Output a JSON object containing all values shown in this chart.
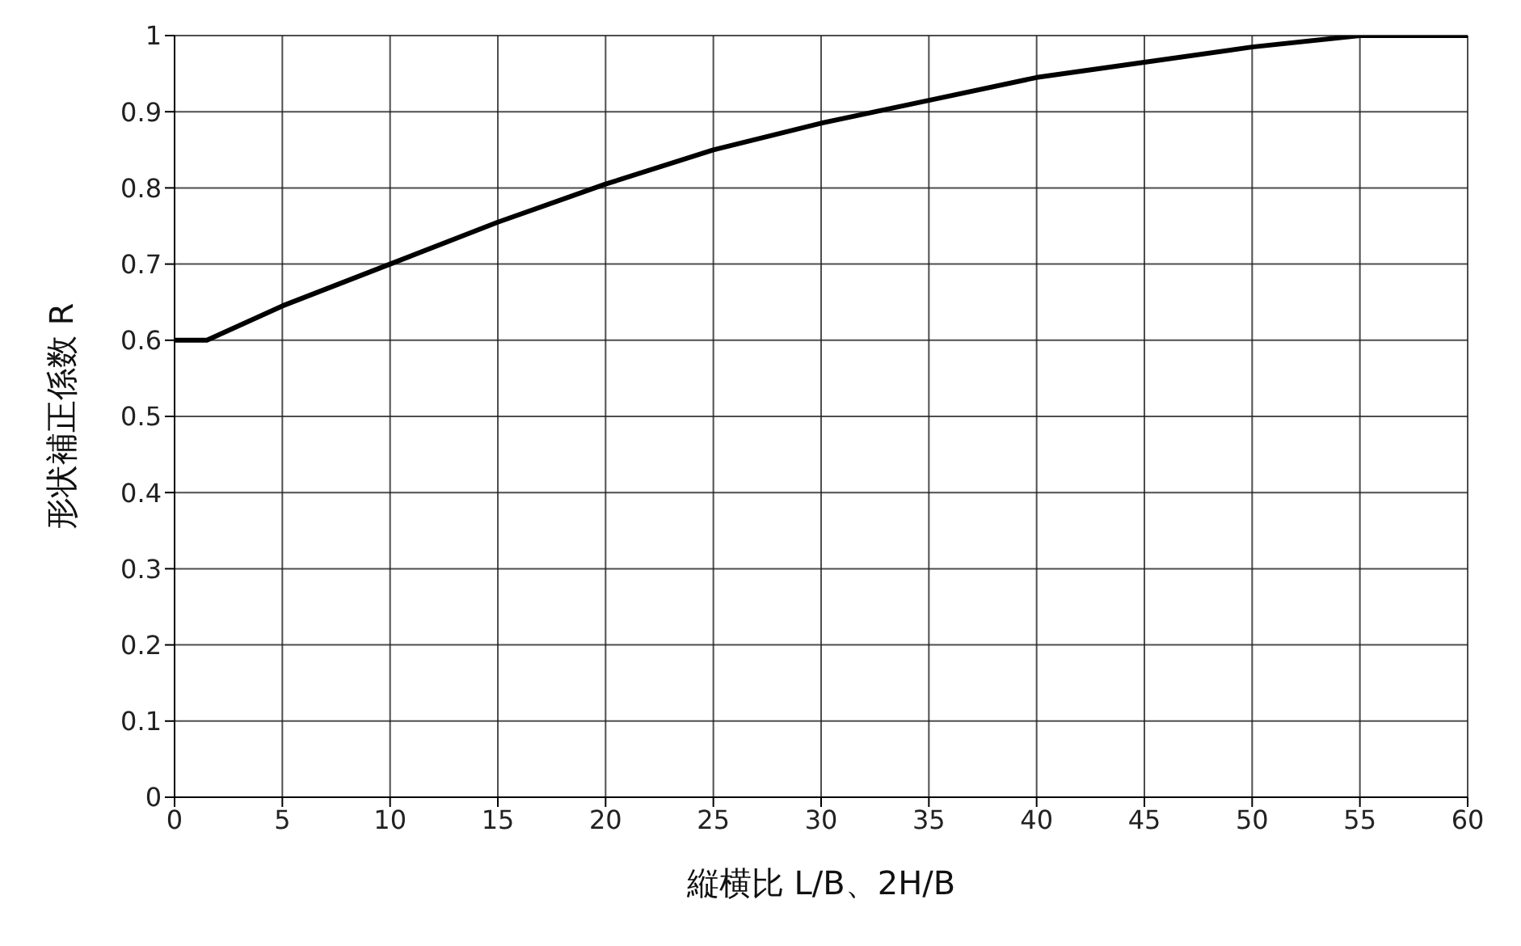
{
  "chart_data": {
    "type": "line",
    "xlabel": "縦横比 L/B、2H/B",
    "ylabel": "形状補正係数 R",
    "x": [
      0,
      1.5,
      5,
      10,
      15,
      20,
      25,
      30,
      35,
      40,
      45,
      50,
      55,
      60
    ],
    "series": [
      {
        "color": "#000000",
        "values": [
          0.6,
          0.6,
          0.645,
          0.7,
          0.755,
          0.805,
          0.85,
          0.885,
          0.915,
          0.945,
          0.965,
          0.985,
          1.0,
          1.0
        ]
      }
    ],
    "xlim": [
      0,
      60
    ],
    "xticks": [
      0,
      5,
      10,
      15,
      20,
      25,
      30,
      35,
      40,
      45,
      50,
      55,
      60
    ],
    "ylim": [
      0,
      1
    ],
    "yticks": [
      0,
      0.1,
      0.2,
      0.3,
      0.4,
      0.5,
      0.6,
      0.7,
      0.8,
      0.9,
      1
    ],
    "grid": true,
    "legend": false,
    "marker": "none",
    "line_style": "solid"
  }
}
